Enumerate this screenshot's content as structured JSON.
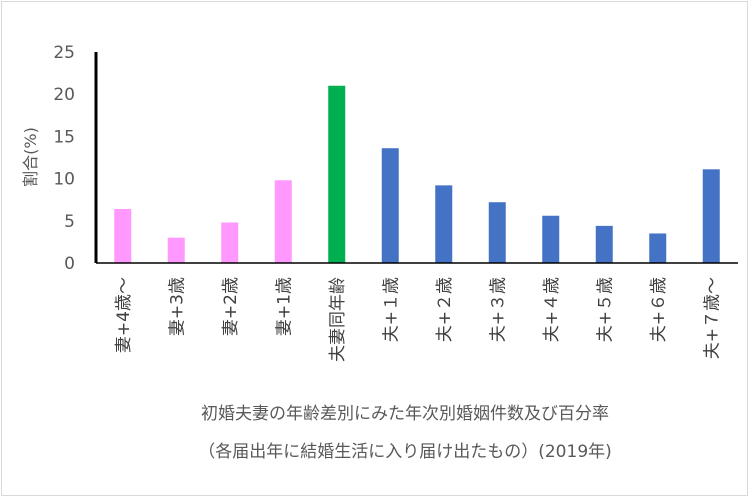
{
  "chart_data": {
    "type": "bar",
    "title": "初婚夫妻の年齢差別にみた年次別婚姻件数及び百分率",
    "subtitle": "（各届出年に結婚生活に入り届け出たもの）(2019年)",
    "ylabel": "割合(%)",
    "xlabel": "",
    "ylim": [
      0,
      25
    ],
    "yticks": [
      0,
      5,
      10,
      15,
      20,
      25
    ],
    "grid": false,
    "legend": "none",
    "categories": [
      "妻+4歳～",
      "妻+3歳",
      "妻+2歳",
      "妻+1歳",
      "夫妻同年齢",
      "夫+１歳",
      "夫+２歳",
      "夫+３歳",
      "夫+４歳",
      "夫+５歳",
      "夫+６歳",
      "夫+７歳～"
    ],
    "values": [
      6.4,
      3.0,
      4.8,
      9.8,
      21.0,
      13.6,
      9.2,
      7.2,
      5.6,
      4.4,
      3.5,
      11.1
    ],
    "colors": [
      "#ff99ff",
      "#ff99ff",
      "#ff99ff",
      "#ff99ff",
      "#00b050",
      "#4472c4",
      "#4472c4",
      "#4472c4",
      "#4472c4",
      "#4472c4",
      "#4472c4",
      "#4472c4"
    ],
    "axis_color": "#000000"
  }
}
